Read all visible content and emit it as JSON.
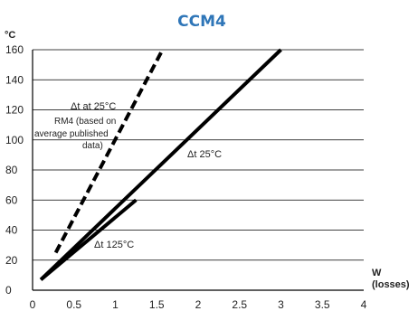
{
  "chart_data": {
    "type": "line",
    "title": "CCM4",
    "ylabel": "°C",
    "xlabel_lines": [
      "W",
      "(losses)"
    ],
    "xlim": [
      0,
      4
    ],
    "ylim": [
      0,
      160
    ],
    "x_ticks": [
      "0",
      "0.5",
      "1",
      "1.5",
      "2",
      "2.5",
      "3",
      "3.5",
      "4"
    ],
    "y_ticks": [
      "0",
      "20",
      "40",
      "60",
      "80",
      "100",
      "120",
      "140",
      "160"
    ],
    "grid": "horizontal",
    "series": [
      {
        "name": "Δt 25°C",
        "style": "solid",
        "x": [
          0.1,
          3.0
        ],
        "y": [
          7,
          160
        ]
      },
      {
        "name": "Δt 125°C",
        "style": "solid",
        "x": [
          0.1,
          1.25
        ],
        "y": [
          7,
          60
        ]
      },
      {
        "name": "Δt at 25°C RM4 (based on average published data)",
        "style": "dashed",
        "x": [
          0.28,
          1.57
        ],
        "y": [
          25,
          160
        ]
      }
    ],
    "annotations": {
      "dashed": [
        "Δt  at 25°C",
        "RM4 (based on",
        "average published",
        "data)"
      ],
      "solid25": "Δt 25°C",
      "solid125": "Δt 125°C"
    },
    "colors": {
      "title": "#2f76b8",
      "line": "#000000",
      "grid": "#000000"
    }
  }
}
